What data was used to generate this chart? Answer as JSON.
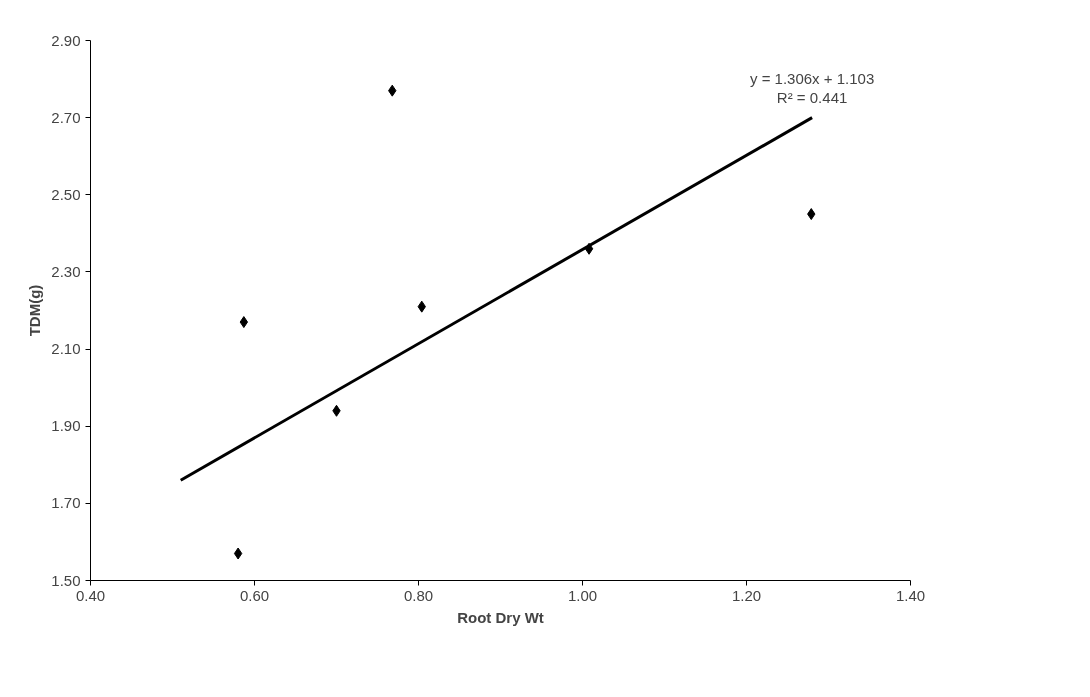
{
  "chart_data": {
    "type": "scatter",
    "xlabel": "Root Dry Wt",
    "ylabel": "TDM(g)",
    "xlim": [
      0.4,
      1.4
    ],
    "xticks": [
      {
        "value": 0.4,
        "label": "0.40"
      },
      {
        "value": 0.6,
        "label": "0.60"
      },
      {
        "value": 0.8,
        "label": "0.80"
      },
      {
        "value": 1.0,
        "label": "1.00"
      },
      {
        "value": 1.2,
        "label": "1.20"
      },
      {
        "value": 1.4,
        "label": "1.40"
      }
    ],
    "ylim": [
      1.5,
      2.9
    ],
    "yticks": [
      {
        "value": 1.5,
        "label": "1.50"
      },
      {
        "value": 1.7,
        "label": "1.70"
      },
      {
        "value": 1.9,
        "label": "1.90"
      },
      {
        "value": 2.1,
        "label": "2.10"
      },
      {
        "value": 2.3,
        "label": "2.30"
      },
      {
        "value": 2.5,
        "label": "2.50"
      },
      {
        "value": 2.7,
        "label": "2.70"
      },
      {
        "value": 2.9,
        "label": "2.90"
      }
    ],
    "grid": false,
    "series": [
      {
        "marker": "diamond",
        "color": "#000000",
        "x": [
          0.587,
          0.58,
          0.7,
          0.768,
          0.804,
          1.008,
          1.279
        ],
        "values": [
          2.17,
          1.57,
          1.94,
          2.77,
          2.21,
          2.36,
          2.45
        ]
      },
      {
        "type": "line",
        "color": "#000000",
        "x": [
          0.51,
          1.28
        ],
        "values": [
          1.76,
          2.7
        ]
      }
    ],
    "annotations": [
      {
        "text": "y = 1.306x + 1.103\nR² = 0.441",
        "x": 1.28,
        "y": 2.7
      }
    ]
  }
}
